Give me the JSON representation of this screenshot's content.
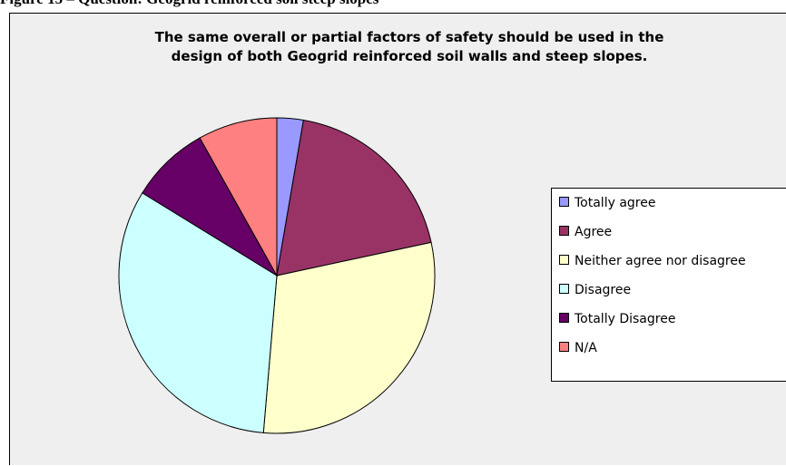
{
  "caption": "Figure 15 – Question: Geogrid reinforced soil steep slopes",
  "chart_data": {
    "type": "pie",
    "title": "The same overall or partial factors of safety should be used in the design of both Geogrid reinforced soil walls and steep slopes.",
    "title_lines": [
      "The same overall or partial factors of safety should be used in the",
      "design of both Geogrid reinforced soil walls and steep slopes."
    ],
    "categories": [
      "Totally agree",
      "Agree",
      "Neither agree nor disagree",
      "Disagree",
      "Totally Disagree",
      "N/A"
    ],
    "values": [
      2.7,
      18.9,
      29.7,
      32.4,
      8.1,
      8.1
    ],
    "colors": [
      "#9999ff",
      "#993366",
      "#ffffcc",
      "#ccffff",
      "#660066",
      "#ff8080"
    ],
    "legend_position": "right"
  }
}
